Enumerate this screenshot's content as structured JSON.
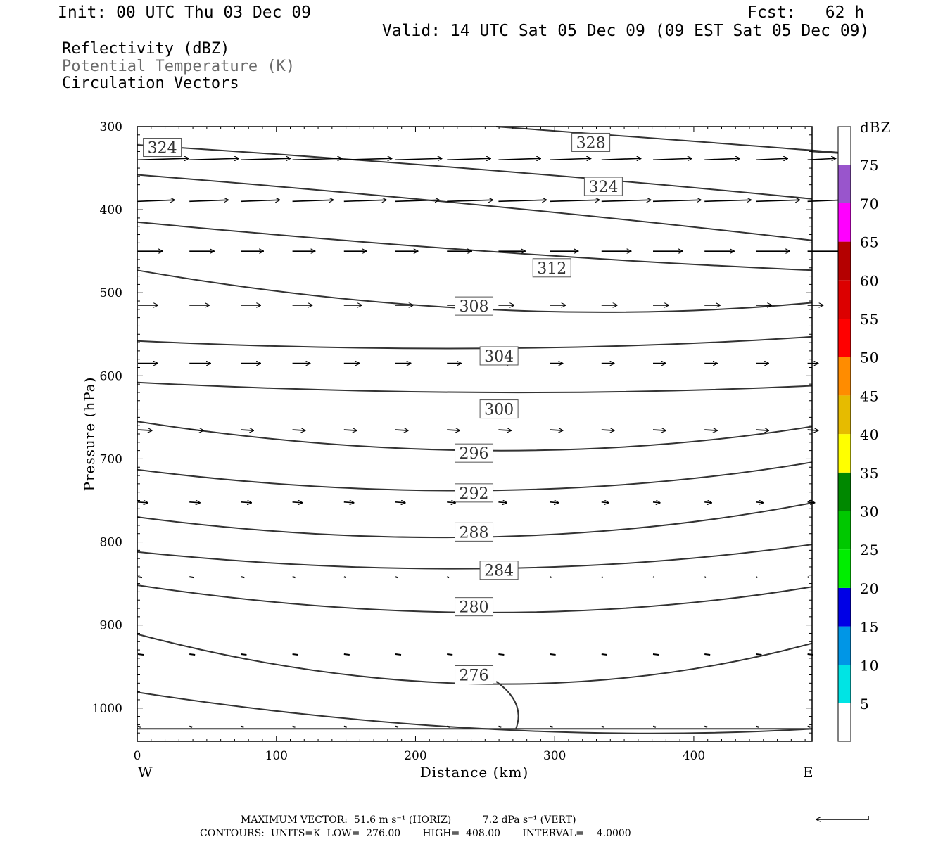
{
  "header": {
    "init": "Init: 00 UTC Thu 03 Dec 09",
    "fcst": "Fcst:   62 h",
    "valid": "Valid: 14 UTC Sat 05 Dec 09 (09 EST Sat 05 Dec 09)"
  },
  "fields": {
    "line1": "Reflectivity (dBZ)",
    "line2": "Potential Temperature (K)",
    "line3": "Circulation Vectors"
  },
  "footer": {
    "max_vector": "MAXIMUM VECTOR:  51.6 m s⁻¹ (HORIZ)          7.2 dPa s⁻¹ (VERT)",
    "contours": "CONTOURS:  UNITS=K  LOW=  276.00       HIGH=  408.00       INTERVAL=    4.0000"
  },
  "colors": {
    "contour": "#333333",
    "axis": "#000000"
  },
  "chart_data": {
    "type": "line",
    "xlabel": "Distance (km)",
    "ylabel": "Pressure (hPa)",
    "x_ticks": [
      0,
      100,
      200,
      300,
      400
    ],
    "y_ticks": [
      300,
      400,
      500,
      600,
      700,
      800,
      900,
      1000
    ],
    "xlim": [
      0,
      485
    ],
    "ylim": [
      300,
      1040
    ],
    "x_left_label": "W",
    "x_right_label": "E",
    "colorbar": {
      "title": "dBZ",
      "labels": [
        5,
        10,
        15,
        20,
        25,
        30,
        35,
        40,
        45,
        50,
        55,
        60,
        65,
        70,
        75
      ],
      "colors": [
        "#00e4e4",
        "#0096e6",
        "#0000e6",
        "#00ee00",
        "#00c800",
        "#008800",
        "#ffff00",
        "#e6bb00",
        "#ff8c00",
        "#ff0000",
        "#dc0000",
        "#b40000",
        "#ff00ff",
        "#9955cc"
      ]
    },
    "contours": [
      {
        "label": "328",
        "x": [
          258,
          480,
          485
        ],
        "y": [
          300,
          328,
          330
        ],
        "label_at": [
          326,
          319
        ]
      },
      {
        "label": "324",
        "x": [
          0,
          250,
          485
        ],
        "y": [
          322,
          352,
          387
        ],
        "label_at": [
          18,
          325
        ]
      },
      {
        "label": "324",
        "x": [
          0,
          250,
          485
        ],
        "y": [
          358,
          395,
          437
        ],
        "label_at": [
          335,
          372
        ]
      },
      {
        "label": "",
        "x": [
          0,
          250,
          485
        ],
        "y": [
          415,
          450,
          473
        ]
      },
      {
        "label": "312",
        "x": [
          0,
          250,
          485
        ],
        "y": [
          473,
          520,
          512
        ],
        "label_at": [
          298,
          470
        ]
      },
      {
        "label": "308",
        "x": [
          0,
          250,
          485
        ],
        "y": [
          558,
          567,
          553
        ],
        "label_at": [
          242,
          516
        ]
      },
      {
        "label": "304",
        "x": [
          0,
          250,
          485
        ],
        "y": [
          608,
          620,
          612
        ],
        "label_at": [
          260,
          576
        ]
      },
      {
        "label": "300",
        "x": [
          0,
          250,
          485
        ],
        "y": [
          655,
          690,
          661
        ],
        "label_at": [
          260,
          640
        ]
      },
      {
        "label": "296",
        "x": [
          0,
          250,
          485
        ],
        "y": [
          713,
          738,
          704
        ],
        "label_at": [
          242,
          693
        ]
      },
      {
        "label": "292",
        "x": [
          0,
          250,
          485
        ],
        "y": [
          770,
          794,
          753
        ],
        "label_at": [
          242,
          741
        ]
      },
      {
        "label": "288",
        "x": [
          0,
          250,
          485
        ],
        "y": [
          812,
          832,
          803
        ],
        "label_at": [
          242,
          788
        ]
      },
      {
        "label": "284",
        "x": [
          0,
          250,
          485
        ],
        "y": [
          852,
          885,
          854
        ],
        "label_at": [
          260,
          834
        ]
      },
      {
        "label": "280",
        "x": [
          0,
          250,
          485
        ],
        "y": [
          911,
          971,
          922
        ],
        "label_at": [
          242,
          878
        ]
      },
      {
        "label": "276",
        "x": [
          0,
          250,
          485
        ],
        "y": [
          981,
          1025,
          1025
        ],
        "label_at": [
          242,
          960
        ]
      }
    ],
    "vector_rows": [
      {
        "p": 340,
        "lengths": [
          72,
          70,
          70,
          70,
          68,
          66,
          62,
          60,
          58,
          56,
          55,
          50,
          45,
          40
        ]
      },
      {
        "p": 390,
        "lengths": [
          52,
          55,
          55,
          58,
          60,
          62,
          65,
          68,
          70,
          70,
          68,
          66,
          62,
          50
        ]
      },
      {
        "p": 450,
        "lengths": [
          35,
          35,
          32,
          32,
          32,
          32,
          35,
          38,
          40,
          42,
          42,
          42,
          48,
          52
        ]
      },
      {
        "p": 515,
        "lengths": [
          28,
          28,
          28,
          28,
          25,
          25,
          25,
          22,
          22,
          22,
          22,
          22,
          22,
          22
        ]
      },
      {
        "p": 585,
        "lengths": [
          28,
          30,
          28,
          25,
          22,
          22,
          20,
          18,
          18,
          18,
          18,
          18,
          18,
          15
        ]
      },
      {
        "p": 665,
        "lengths": [
          20,
          20,
          18,
          18,
          18,
          18,
          18,
          18,
          18,
          18,
          18,
          18,
          18,
          15
        ]
      },
      {
        "p": 752,
        "lengths": [
          14,
          15,
          15,
          14,
          14,
          14,
          12,
          12,
          12,
          10,
          10,
          10,
          10,
          10
        ]
      },
      {
        "p": 842,
        "lengths": [
          6,
          6,
          5,
          4,
          3,
          3,
          3,
          3,
          2,
          2,
          2,
          2,
          2,
          2
        ]
      },
      {
        "p": 935,
        "lengths": [
          8,
          8,
          8,
          8,
          8,
          8,
          8,
          8,
          8,
          8,
          8,
          8,
          8,
          8
        ]
      },
      {
        "p": 1022,
        "lengths": [
          4,
          4,
          4,
          4,
          4,
          4,
          4,
          4,
          4,
          4,
          4,
          4,
          4,
          4
        ]
      }
    ]
  }
}
